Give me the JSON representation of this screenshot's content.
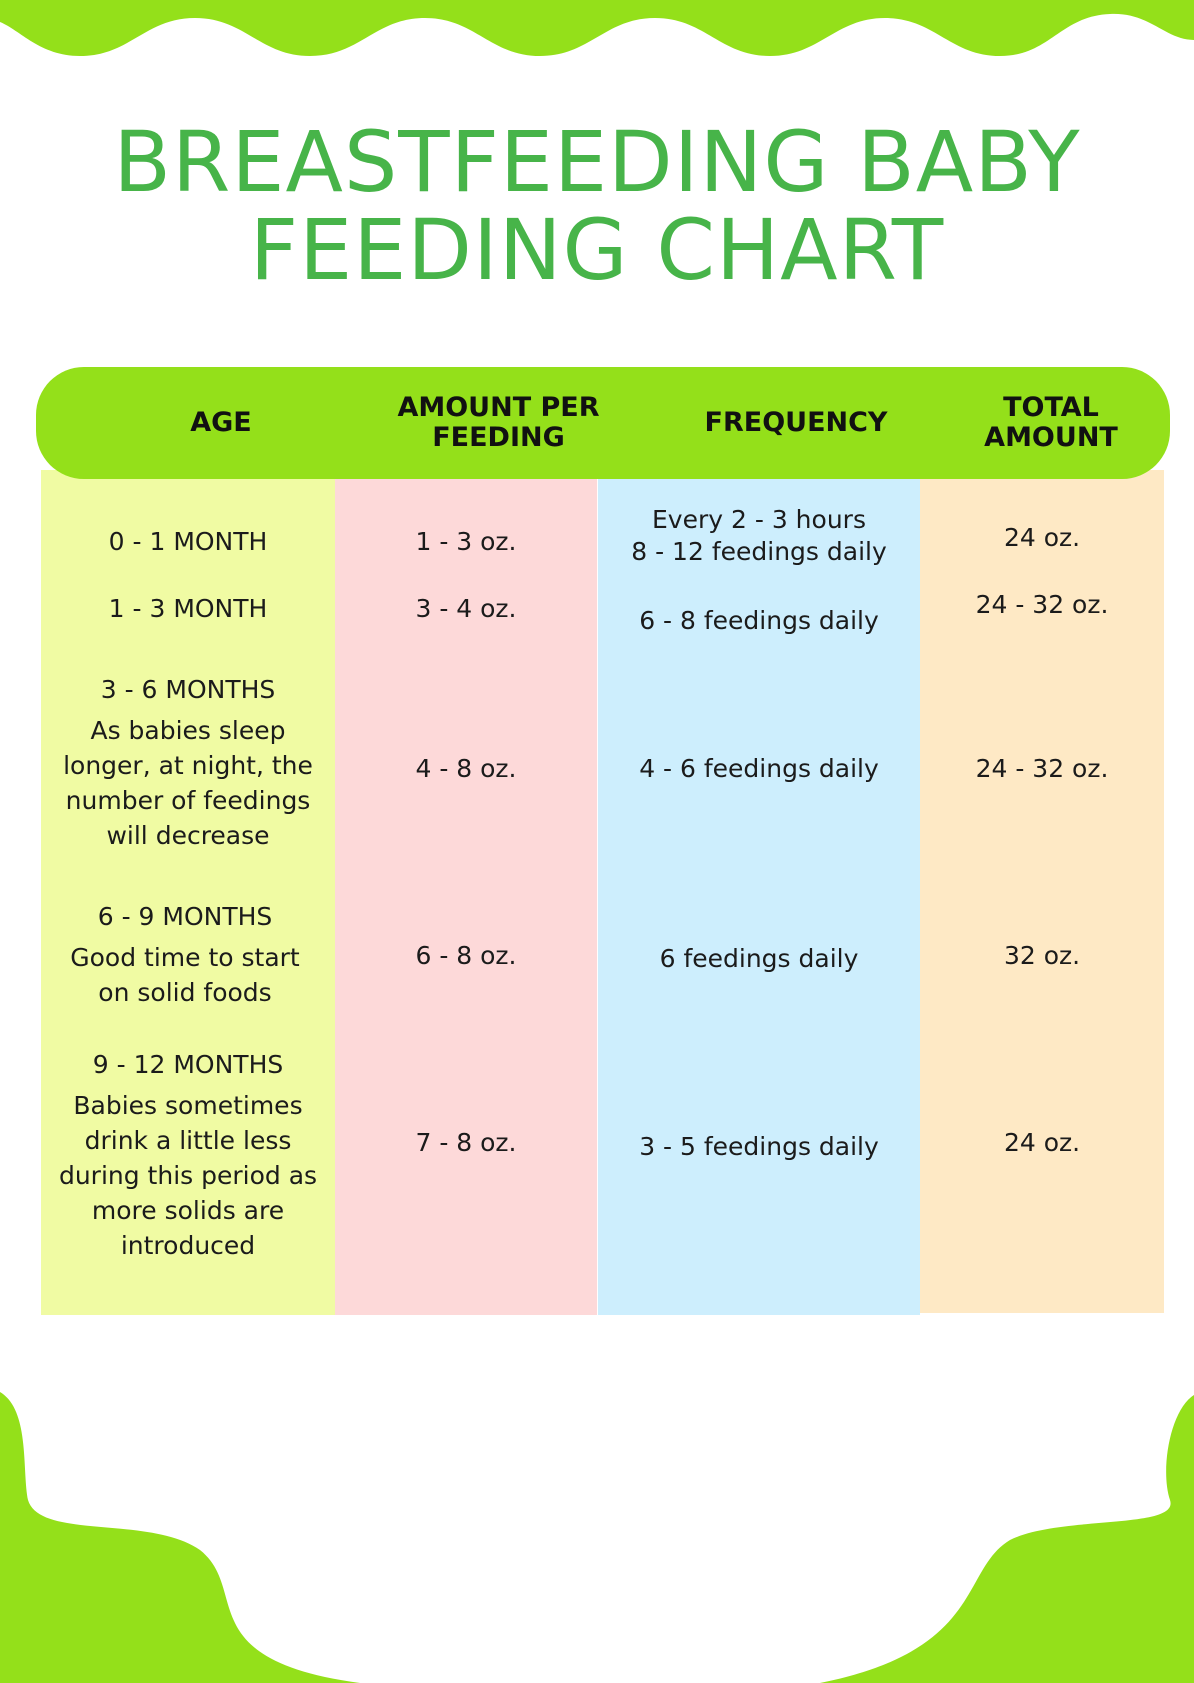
{
  "title": {
    "line1": "BREASTFEEDING BABY",
    "line2": "FEEDING CHART"
  },
  "colors": {
    "accent_green": "#94e01a",
    "title_green": "#47b449",
    "age_column": "#f0fba3",
    "amount_column": "#fdd9d9",
    "frequency_column": "#cdeefd",
    "total_column": "#fee9c5"
  },
  "table": {
    "headers": {
      "age": "AGE",
      "amount_line1": "AMOUNT PER",
      "amount_line2": "FEEDING",
      "frequency": "FREQUENCY",
      "total_line1": "TOTAL",
      "total_line2": "AMOUNT"
    },
    "rows": [
      {
        "age": "0 - 1 MONTH",
        "note": "",
        "amount": "1 - 3 oz.",
        "frequency_line1": "Every 2 - 3 hours",
        "frequency_line2": "8 - 12 feedings daily",
        "total": "24 oz."
      },
      {
        "age": "1 - 3 MONTH",
        "note": "",
        "amount": "3 - 4 oz.",
        "frequency_line1": "6 - 8 feedings daily",
        "total": "24 - 32 oz."
      },
      {
        "age": "3 - 6 MONTHS",
        "note": "As babies sleep longer, at night, the number of feedings will decrease",
        "amount": "4 - 8 oz.",
        "frequency_line1": "4 - 6 feedings daily",
        "total": "24 - 32 oz."
      },
      {
        "age": "6 - 9 MONTHS",
        "note": "Good time to start on solid foods",
        "amount": "6 - 8 oz.",
        "frequency_line1": "6 feedings daily",
        "total": "32 oz."
      },
      {
        "age": "9 - 12 MONTHS",
        "note": "Babies sometimes drink a little less during this period as more solids are introduced",
        "amount": "7 - 8 oz.",
        "frequency_line1": "3 - 5 feedings daily",
        "total": "24 oz."
      }
    ]
  }
}
